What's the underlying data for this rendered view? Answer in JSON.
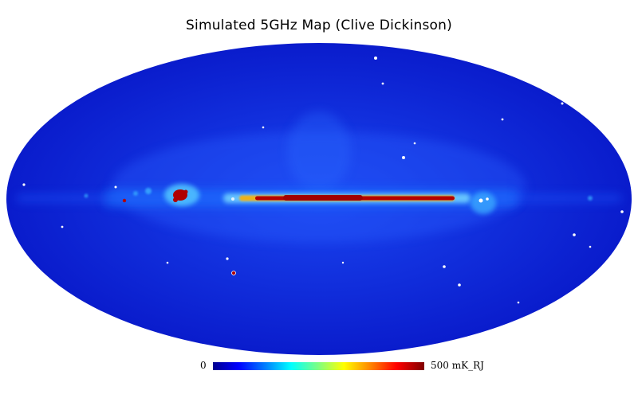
{
  "map": {
    "title": "Simulated 5GHz Map (Clive Dickinson)",
    "projection": "mollweide",
    "colormap": "jet",
    "colors": {
      "background": "#0a1fd6",
      "plane": "#6fd0ff",
      "core": "#b40000"
    }
  },
  "colorbar": {
    "min_label": "0",
    "max_label": "500  mK_RJ"
  }
}
